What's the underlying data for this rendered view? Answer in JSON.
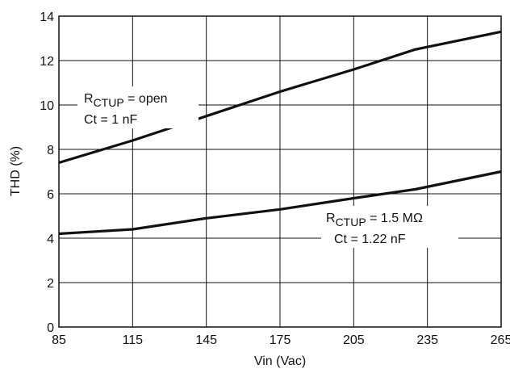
{
  "chart_data": {
    "type": "line",
    "xlabel": "Vin (Vac)",
    "ylabel": "THD (%)",
    "xlim": [
      85,
      265
    ],
    "ylim": [
      0,
      14
    ],
    "x_ticks": [
      "85",
      "115",
      "145",
      "175",
      "205",
      "235",
      "265"
    ],
    "y_ticks": [
      "0",
      "2",
      "4",
      "6",
      "8",
      "10",
      "12",
      "14"
    ],
    "grid": true,
    "series": [
      {
        "x": [
          85,
          115,
          145,
          175,
          205,
          230,
          265
        ],
        "values": [
          7.4,
          8.4,
          9.5,
          10.6,
          11.6,
          12.5,
          13.3
        ]
      },
      {
        "x": [
          85,
          115,
          145,
          175,
          205,
          230,
          265
        ],
        "values": [
          4.2,
          4.4,
          4.9,
          5.3,
          5.8,
          6.2,
          7.0
        ]
      }
    ],
    "annotations": [
      {
        "line1_main": "R",
        "line1_sub": "CTUP",
        "line1_rest": " = open",
        "line2": "Ct = 1 nF"
      },
      {
        "line1_main": "R",
        "line1_sub": "CTUP",
        "line1_rest": " = 1.5 MΩ",
        "line2": "Ct = 1.22 nF"
      }
    ],
    "line_color": "#111111",
    "grid_color": "#111111"
  }
}
